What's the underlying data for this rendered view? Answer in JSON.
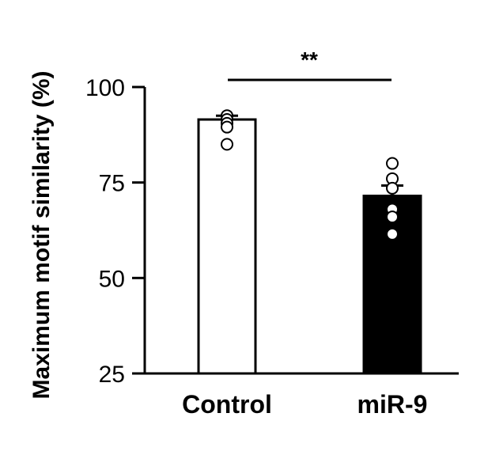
{
  "chart_data": {
    "type": "bar",
    "ylabel": "Maximum motif similarity (%)",
    "xlabel": "",
    "ylim": [
      25,
      100
    ],
    "yticks": [
      25,
      50,
      75,
      100
    ],
    "grid": false,
    "categories": [
      "Control",
      "miR-9"
    ],
    "values": [
      91.5,
      71.5
    ],
    "errors": [
      1.0,
      2.7
    ],
    "bar_colors": [
      "#ffffff",
      "#000000"
    ],
    "points": [
      [
        92.5,
        91.5,
        90.5,
        89.5,
        85.0
      ],
      [
        80.0,
        76.0,
        73.5,
        68.0,
        66.0,
        61.5
      ]
    ],
    "point_colors": [
      "#ffffff",
      "#ffffff"
    ],
    "significance": {
      "label": "**",
      "between": [
        0,
        1
      ]
    }
  }
}
